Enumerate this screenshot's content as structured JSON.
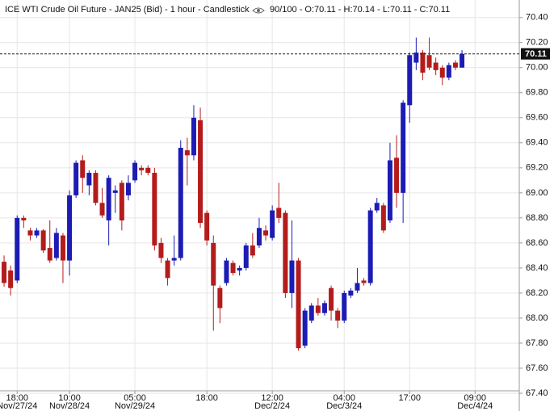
{
  "chart_data": {
    "type": "candlestick",
    "title": "ICE WTI Crude Oil Future - JAN25 (Bid) - 1 hour - Candlestick",
    "info": "90/100 - O:70.11 - H:70.14 - L:70.11 - C:70.11",
    "categories": [
      null,
      null,
      "18:00",
      null,
      null,
      null,
      null,
      null,
      null,
      null,
      "10:00",
      null,
      null,
      null,
      null,
      null,
      null,
      null,
      null,
      null,
      "05:00",
      null,
      null,
      null,
      null,
      null,
      null,
      null,
      null,
      null,
      null,
      "18:00",
      null,
      null,
      null,
      null,
      null,
      null,
      null,
      null,
      null,
      "12:00",
      null,
      null,
      null,
      null,
      null,
      null,
      null,
      null,
      null,
      null,
      "04:00",
      null,
      null,
      null,
      null,
      null,
      null,
      null,
      null,
      null,
      "17:00",
      null,
      null,
      null,
      null,
      null,
      null,
      null,
      null,
      null,
      "09:00"
    ],
    "dates": [
      null,
      null,
      "Nov/27/24",
      null,
      null,
      null,
      null,
      null,
      null,
      null,
      "Nov/28/24",
      null,
      null,
      null,
      null,
      null,
      null,
      null,
      null,
      null,
      "Nov/29/24",
      null,
      null,
      null,
      null,
      null,
      null,
      null,
      null,
      null,
      null,
      null,
      null,
      null,
      null,
      null,
      null,
      null,
      null,
      null,
      null,
      "Dec/2/24",
      null,
      null,
      null,
      null,
      null,
      null,
      null,
      null,
      null,
      null,
      "Dec/3/24",
      null,
      null,
      null,
      null,
      null,
      null,
      null,
      null,
      null,
      null,
      null,
      null,
      null,
      null,
      null,
      null,
      null,
      null,
      null,
      "Dec/4/24"
    ],
    "open": [
      68.45,
      68.38,
      68.3,
      68.8,
      68.7,
      68.66,
      68.7,
      68.56,
      68.48,
      68.66,
      68.46,
      68.98,
      69.26,
      69.06,
      69.16,
      68.92,
      68.78,
      69.0,
      69.08,
      68.98,
      69.1,
      69.2,
      69.2,
      69.16,
      68.6,
      68.46,
      68.46,
      68.48,
      69.34,
      69.3,
      69.58,
      68.84,
      68.6,
      68.24,
      68.28,
      68.44,
      68.38,
      68.4,
      68.58,
      68.58,
      68.7,
      68.64,
      68.88,
      68.84,
      68.2,
      68.46,
      67.78,
      67.98,
      68.1,
      68.04,
      68.24,
      68.06,
      67.98,
      68.18,
      68.22,
      68.3,
      68.28,
      68.86,
      68.9,
      68.78,
      69.28,
      69.0,
      69.7,
      70.04,
      70.12,
      70.1,
      70.04,
      70.0,
      69.92,
      70.04,
      70.0,
      null,
      null
    ],
    "high": [
      68.5,
      68.42,
      68.82,
      68.82,
      68.72,
      68.72,
      68.71,
      68.78,
      68.72,
      68.68,
      69.02,
      69.26,
      69.3,
      69.18,
      69.18,
      69.04,
      69.14,
      69.06,
      69.1,
      69.14,
      69.26,
      69.22,
      69.22,
      69.2,
      68.64,
      68.48,
      68.66,
      69.42,
      69.44,
      69.7,
      69.68,
      68.86,
      68.66,
      68.26,
      68.48,
      68.46,
      68.42,
      68.6,
      68.68,
      68.8,
      68.74,
      68.9,
      69.08,
      68.86,
      68.78,
      68.48,
      68.08,
      68.12,
      68.16,
      68.14,
      68.26,
      68.08,
      68.22,
      68.24,
      68.4,
      68.32,
      68.88,
      68.96,
      68.92,
      69.4,
      69.46,
      69.74,
      70.12,
      70.24,
      70.14,
      70.24,
      70.08,
      70.02,
      70.04,
      70.06,
      70.14,
      null,
      null
    ],
    "low": [
      68.25,
      68.18,
      68.28,
      68.72,
      68.62,
      68.64,
      68.52,
      68.44,
      68.46,
      68.28,
      68.34,
      68.96,
      69.0,
      68.98,
      68.9,
      68.8,
      68.58,
      68.84,
      68.7,
      68.94,
      69.08,
      69.14,
      69.14,
      68.54,
      68.44,
      68.26,
      68.42,
      68.46,
      69.06,
      69.26,
      68.72,
      68.58,
      67.9,
      67.96,
      68.26,
      68.34,
      68.34,
      68.38,
      68.48,
      68.56,
      68.62,
      68.62,
      68.76,
      68.16,
      68.08,
      67.74,
      67.76,
      67.96,
      68.02,
      68.02,
      67.98,
      67.92,
      67.96,
      68.16,
      68.2,
      68.26,
      68.26,
      68.84,
      68.68,
      68.76,
      68.88,
      68.76,
      69.56,
      69.98,
      69.9,
      69.98,
      69.94,
      69.86,
      69.9,
      69.98,
      70.0,
      null,
      null
    ],
    "close": [
      68.28,
      68.24,
      68.8,
      68.78,
      68.66,
      68.7,
      68.54,
      68.46,
      68.68,
      68.46,
      68.98,
      69.24,
      69.12,
      69.16,
      68.92,
      68.82,
      69.12,
      69.02,
      68.78,
      69.08,
      69.24,
      69.18,
      69.16,
      68.58,
      68.48,
      68.32,
      68.48,
      69.36,
      69.3,
      69.6,
      68.76,
      68.62,
      68.26,
      68.08,
      68.46,
      68.36,
      68.4,
      68.58,
      68.5,
      68.72,
      68.66,
      68.86,
      68.8,
      68.2,
      68.46,
      67.76,
      68.06,
      68.1,
      68.04,
      68.12,
      68.06,
      67.98,
      68.2,
      68.22,
      68.28,
      68.28,
      68.86,
      68.92,
      68.7,
      69.26,
      69.0,
      69.72,
      70.1,
      70.12,
      69.96,
      70.0,
      69.98,
      69.92,
      70.02,
      70.0,
      70.11,
      null,
      null
    ],
    "up_color": "#1c1cb4",
    "down_color": "#b41c1c",
    "last_price": 70.11,
    "last_price_label": "70.11",
    "ylim": [
      67.4,
      70.54
    ],
    "yticks": [
      {
        "value": 67.4,
        "label": "67.40"
      },
      {
        "value": 67.6,
        "label": "67.60"
      },
      {
        "value": 67.8,
        "label": "67.80"
      },
      {
        "value": 68,
        "label": "68.00"
      },
      {
        "value": 68.2,
        "label": "68.20"
      },
      {
        "value": 68.4,
        "label": "68.40"
      },
      {
        "value": 68.6,
        "label": "68.60"
      },
      {
        "value": 68.8,
        "label": "68.80"
      },
      {
        "value": 69,
        "label": "69.00"
      },
      {
        "value": 69.2,
        "label": "69.20"
      },
      {
        "value": 69.4,
        "label": "69.40"
      },
      {
        "value": 69.6,
        "label": "69.60"
      },
      {
        "value": 69.8,
        "label": "69.80"
      },
      {
        "value": 70,
        "label": "70.00"
      },
      {
        "value": 70.2,
        "label": "70.20"
      },
      {
        "value": 70.4,
        "label": "70.40"
      }
    ],
    "grid": true
  }
}
